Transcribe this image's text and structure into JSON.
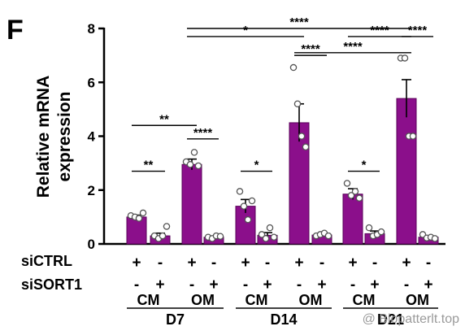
{
  "panel_label": "F",
  "watermark": "@ Biopatterlt.top",
  "colors": {
    "bar": "#8b0f8b",
    "axis": "#000000",
    "point_stroke": "#555555"
  },
  "chart_data": {
    "type": "bar",
    "ylabel": "Relative mRNA expression",
    "ylabel_lines": [
      "Relative mRNA",
      "expression"
    ],
    "ylim": [
      0,
      8
    ],
    "yticks": [
      "0",
      "2",
      "4",
      "6",
      "8"
    ],
    "categories": [
      "siCTRL D7 CM",
      "siSORT1 D7 CM",
      "siCTRL D7 OM",
      "siSORT1 D7 OM",
      "siCTRL D14 CM",
      "siSORT1 D14 CM",
      "siCTRL D14 OM",
      "siSORT1 D14 OM",
      "siCTRL D21 CM",
      "siSORT1 D21 CM",
      "siCTRL D21 OM",
      "siSORT1 D21 OM"
    ],
    "values": [
      1.0,
      0.3,
      2.95,
      0.25,
      1.4,
      0.32,
      4.5,
      0.33,
      1.85,
      0.38,
      5.4,
      0.25
    ],
    "errors": [
      0.07,
      0.1,
      0.2,
      0.04,
      0.25,
      0.1,
      0.7,
      0.05,
      0.2,
      0.1,
      0.7,
      0.05
    ],
    "points": [
      [
        1.05,
        1.0,
        0.95,
        1.15
      ],
      [
        0.3,
        0.2,
        0.3,
        0.65
      ],
      [
        3.05,
        2.95,
        3.4,
        2.9
      ],
      [
        0.25,
        0.2,
        0.3,
        0.28
      ],
      [
        1.95,
        1.4,
        0.9,
        1.6
      ],
      [
        0.35,
        0.2,
        0.6,
        0.25
      ],
      [
        6.55,
        5.2,
        4.0,
        3.6
      ],
      [
        0.3,
        0.35,
        0.4,
        0.3
      ],
      [
        2.25,
        1.8,
        1.95,
        1.7
      ],
      [
        0.6,
        0.3,
        0.35,
        0.45
      ],
      [
        6.9,
        6.9,
        4.0,
        4.0
      ],
      [
        0.35,
        0.22,
        0.25,
        0.2
      ]
    ],
    "row_labels": [
      "siCTRL",
      "siSORT1"
    ],
    "siCTRL_signs": [
      "+",
      "-",
      "+",
      "-",
      "+",
      "-",
      "+",
      "-",
      "+",
      "-",
      "+",
      "-"
    ],
    "siSORT1_signs": [
      "-",
      "+",
      "-",
      "+",
      "-",
      "+",
      "-",
      "+",
      "-",
      "+",
      "-",
      "+"
    ],
    "media_labels": [
      "CM",
      "OM",
      "CM",
      "OM",
      "CM",
      "OM"
    ],
    "day_labels": [
      "D7",
      "D14",
      "D21"
    ],
    "significance": [
      {
        "label": "**",
        "from": 0,
        "to": 1,
        "y": 2.7
      },
      {
        "label": "**",
        "from": 0,
        "to": 2,
        "y": 4.4
      },
      {
        "label": "****",
        "from": 2,
        "to": 3,
        "y": 3.9
      },
      {
        "label": "*",
        "from": 4,
        "to": 5,
        "y": 2.7
      },
      {
        "label": "****",
        "from": 6,
        "to": 7,
        "y": 7.0
      },
      {
        "label": "****",
        "from": 6,
        "to": 10,
        "y": 7.1
      },
      {
        "label": "*",
        "from": 2,
        "to": 6,
        "y": 7.7
      },
      {
        "label": "****",
        "from": 2,
        "to": 10,
        "y": 8.0
      },
      {
        "label": "*",
        "from": 8,
        "to": 9,
        "y": 2.7
      },
      {
        "label": "****",
        "from": 8,
        "to": 10,
        "y": 7.7
      },
      {
        "label": "****",
        "from": 10,
        "to": 11,
        "y": 7.7
      }
    ]
  }
}
